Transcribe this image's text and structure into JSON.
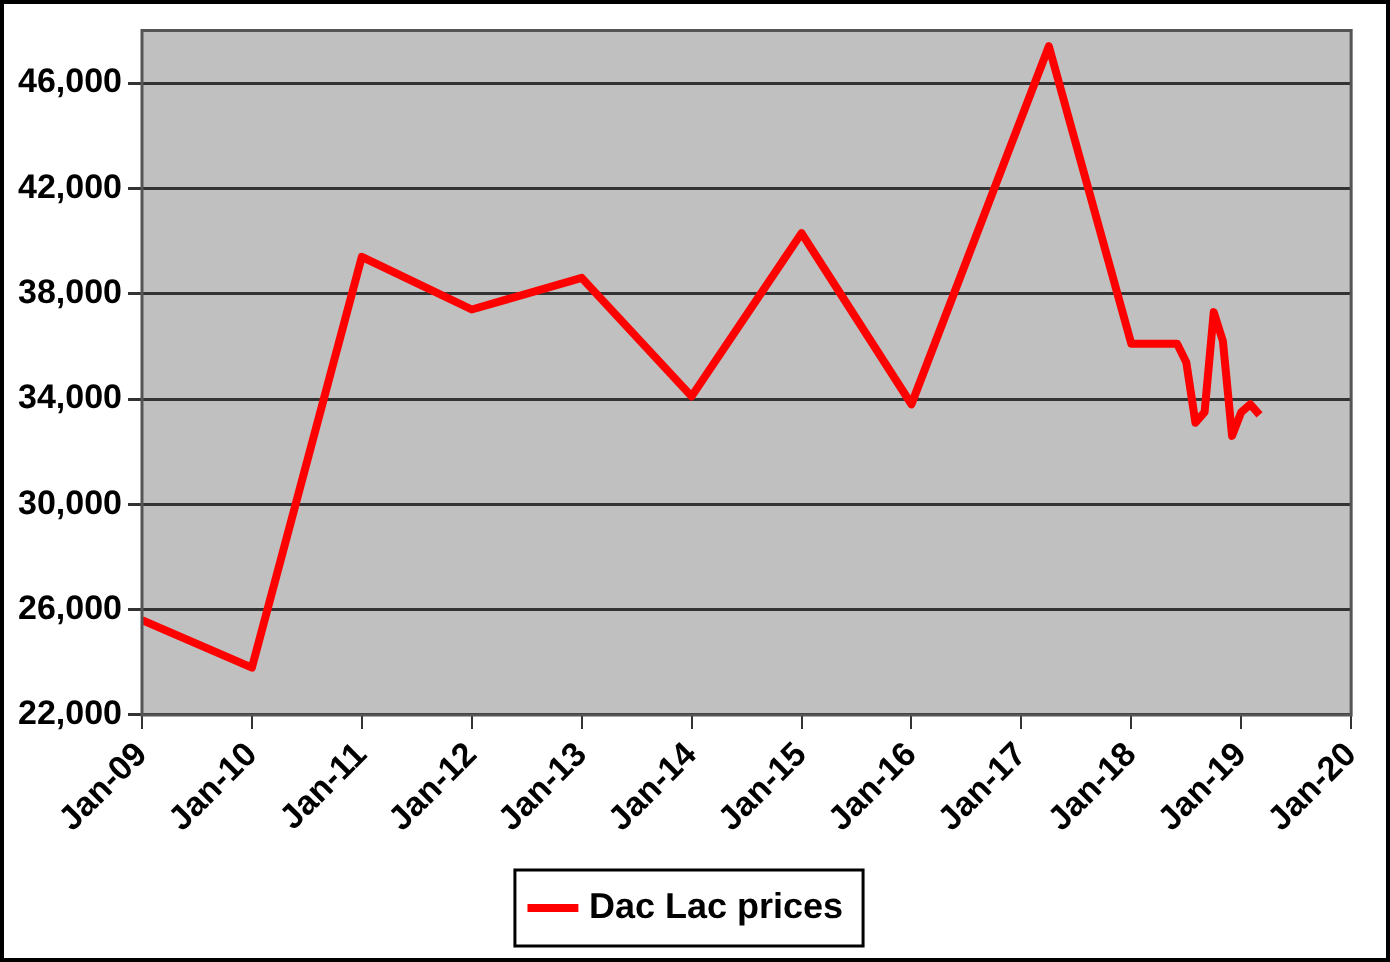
{
  "chart_data": {
    "type": "line",
    "x": [
      "2009-01",
      "2010-01",
      "2011-01",
      "2012-01",
      "2013-01",
      "2014-01",
      "2015-01",
      "2016-01",
      "2017-04",
      "2018-01",
      "2018-06",
      "2018-07",
      "2018-08",
      "2018-09",
      "2018-10",
      "2018-11",
      "2018-12",
      "2019-01",
      "2019-02",
      "2019-03"
    ],
    "series": [
      {
        "name": "Dac Lac prices",
        "color": "#ff0000",
        "values": [
          25600,
          23800,
          39400,
          37400,
          38600,
          34100,
          40300,
          33800,
          47400,
          36100,
          36100,
          35400,
          33100,
          33500,
          37300,
          36200,
          32600,
          33500,
          33800,
          33400
        ]
      }
    ],
    "xlim": [
      "2009-01",
      "2020-01"
    ],
    "xticks": [
      {
        "value": "2009-01",
        "label": "Jan-09"
      },
      {
        "value": "2010-01",
        "label": "Jan-10"
      },
      {
        "value": "2011-01",
        "label": "Jan-11"
      },
      {
        "value": "2012-01",
        "label": "Jan-12"
      },
      {
        "value": "2013-01",
        "label": "Jan-13"
      },
      {
        "value": "2014-01",
        "label": "Jan-14"
      },
      {
        "value": "2015-01",
        "label": "Jan-15"
      },
      {
        "value": "2016-01",
        "label": "Jan-16"
      },
      {
        "value": "2017-01",
        "label": "Jan-17"
      },
      {
        "value": "2018-01",
        "label": "Jan-18"
      },
      {
        "value": "2019-01",
        "label": "Jan-19"
      },
      {
        "value": "2020-01",
        "label": "Jan-20"
      }
    ],
    "ylim": [
      22000,
      48000
    ],
    "yticks": [
      {
        "value": 22000,
        "label": "22,000"
      },
      {
        "value": 26000,
        "label": "26,000"
      },
      {
        "value": 30000,
        "label": "30,000"
      },
      {
        "value": 34000,
        "label": "34,000"
      },
      {
        "value": 38000,
        "label": "38,000"
      },
      {
        "value": 42000,
        "label": "42,000"
      },
      {
        "value": 46000,
        "label": "46,000"
      }
    ],
    "grid": "y",
    "legend": "bottom",
    "marker": "none",
    "line_style": "solid"
  }
}
